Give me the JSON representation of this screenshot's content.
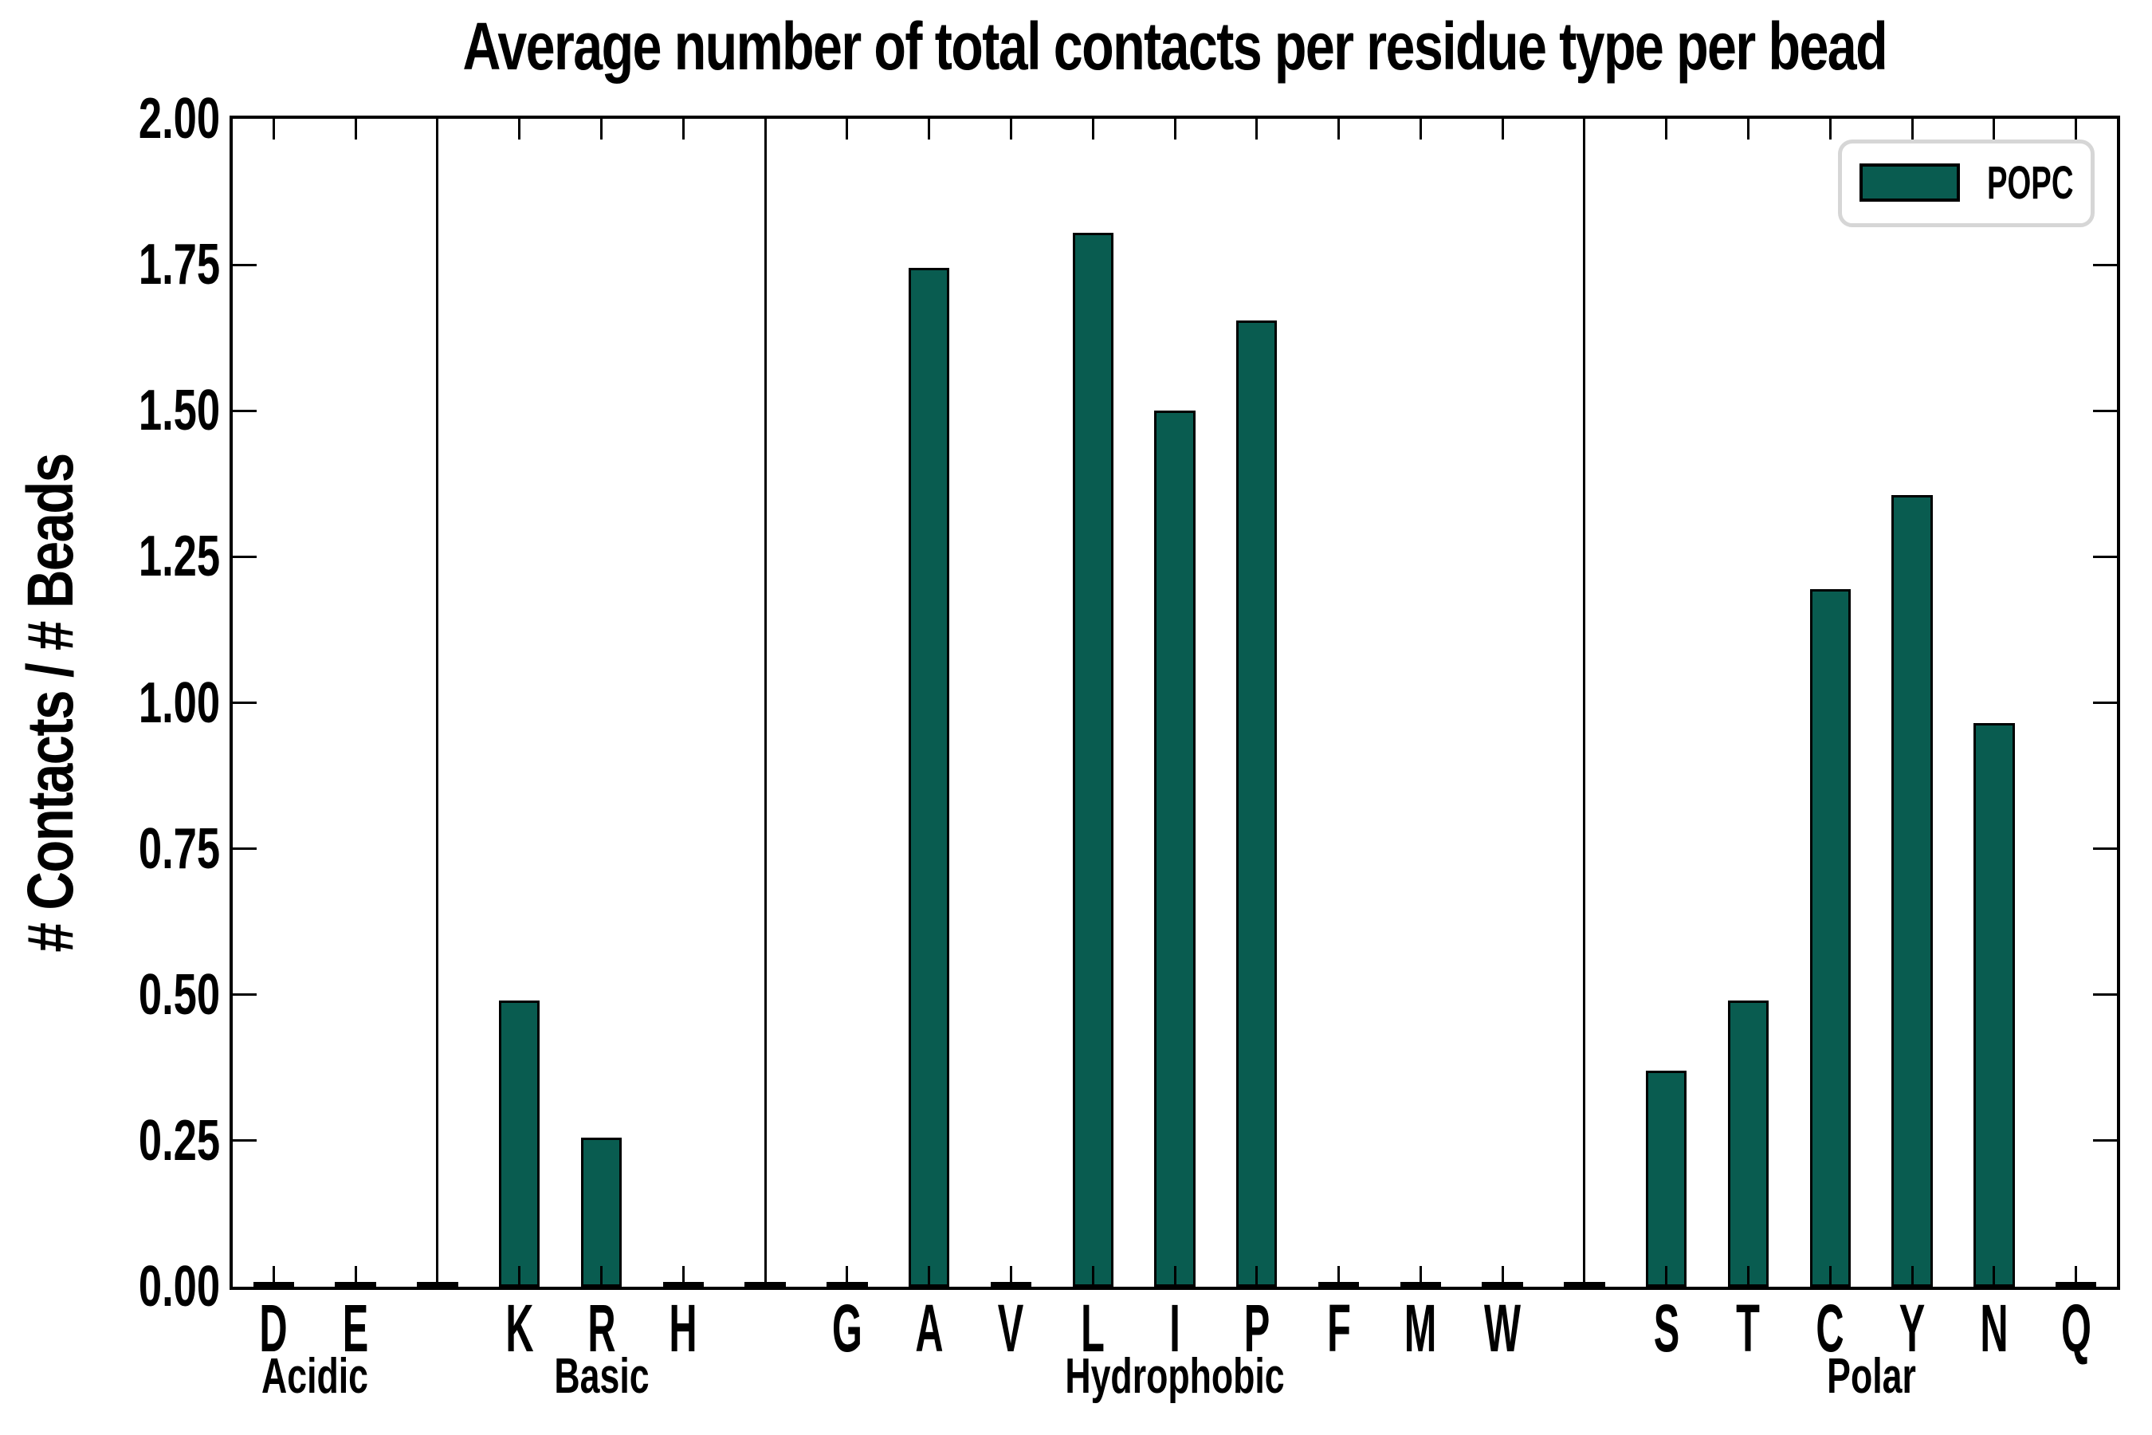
{
  "chart_data": {
    "type": "bar",
    "title": "Average number of total contacts per residue type per bead",
    "xlabel": "",
    "ylabel": "# Contacts / # Beads",
    "ylim": [
      0.0,
      2.0
    ],
    "ytick_step": 0.25,
    "ytick_labels": [
      "0.00",
      "0.25",
      "0.50",
      "0.75",
      "1.00",
      "1.25",
      "1.50",
      "1.75",
      "2.00"
    ],
    "grid": false,
    "bar_color": "#095c50",
    "bar_edge_color": "#000000",
    "separator_color": "#000000",
    "legend": {
      "entries": [
        "POPC"
      ],
      "position": "upper right",
      "swatch_color": "#095c50",
      "border_color": "#d6d6d6"
    },
    "groups": [
      {
        "label": "Acidic",
        "categories": [
          "D",
          "E"
        ],
        "values": [
          0.0,
          0.0
        ]
      },
      {
        "label": "Basic",
        "categories": [
          "K",
          "R",
          "H"
        ],
        "values": [
          0.49,
          0.255,
          0.0
        ]
      },
      {
        "label": "Hydrophobic",
        "categories": [
          "G",
          "A",
          "V",
          "L",
          "I",
          "P",
          "F",
          "M",
          "W"
        ],
        "values": [
          0.0,
          1.745,
          0.0,
          1.805,
          1.5,
          1.655,
          0.0,
          0.0,
          0.0
        ]
      },
      {
        "label": "Polar",
        "categories": [
          "S",
          "T",
          "C",
          "Y",
          "N",
          "Q"
        ],
        "values": [
          0.37,
          0.49,
          1.195,
          1.355,
          0.965,
          0.0
        ]
      }
    ]
  }
}
